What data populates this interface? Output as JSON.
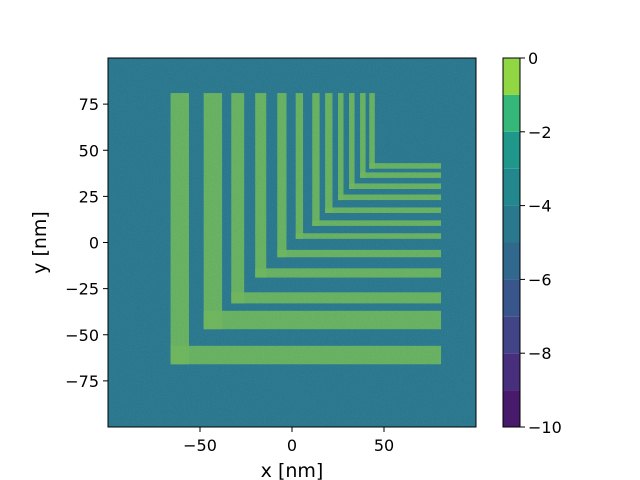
{
  "chart_data": {
    "type": "heatmap",
    "title": "",
    "xlabel": "x [nm]",
    "ylabel": "y [nm]",
    "xlim": [
      -100,
      100
    ],
    "ylim": [
      -100,
      100
    ],
    "x_ticks": [
      {
        "value": -50,
        "label": "−50"
      },
      {
        "value": 0,
        "label": "0"
      },
      {
        "value": 50,
        "label": "50"
      }
    ],
    "y_ticks": [
      {
        "value": 75,
        "label": "75"
      },
      {
        "value": 50,
        "label": "50"
      },
      {
        "value": 25,
        "label": "25"
      },
      {
        "value": 0,
        "label": "0"
      },
      {
        "value": -25,
        "label": "−25"
      },
      {
        "value": -50,
        "label": "−50"
      },
      {
        "value": -75,
        "label": "−75"
      }
    ],
    "colorbar": {
      "range": [
        -10,
        0
      ],
      "levels": [
        -10,
        -9,
        -8,
        -7,
        -6,
        -5,
        -4,
        -3,
        -2,
        -1,
        0
      ],
      "ticks": [
        {
          "value": 0,
          "label": "0"
        },
        {
          "value": -2,
          "label": "−2"
        },
        {
          "value": -4,
          "label": "−4"
        },
        {
          "value": -6,
          "label": "−6"
        },
        {
          "value": -8,
          "label": "−8"
        },
        {
          "value": -10,
          "label": "−10"
        }
      ],
      "colors": [
        "#481a6c",
        "#472f7d",
        "#414487",
        "#39568c",
        "#31688e",
        "#2a788e",
        "#23888e",
        "#1f988b",
        "#35b779",
        "#90d743",
        "#fde725"
      ]
    },
    "background_level": -4.5,
    "feature_level": -1,
    "nested_L_features": [
      {
        "x0": -66,
        "x1": -56,
        "y0": -66,
        "y1": -56,
        "x_end": 81,
        "y_end": 81
      },
      {
        "x0": -48,
        "x1": -38,
        "y0": -47,
        "y1": -37,
        "x_end": 81,
        "y_end": 81
      },
      {
        "x0": -33,
        "x1": -26,
        "y0": -33,
        "y1": -27,
        "x_end": 81,
        "y_end": 81
      },
      {
        "x0": -20,
        "x1": -14,
        "y0": -19,
        "y1": -14,
        "x_end": 81,
        "y_end": 81
      },
      {
        "x0": -8,
        "x1": -3,
        "y0": -8,
        "y1": -4,
        "x_end": 81,
        "y_end": 81
      },
      {
        "x0": 2,
        "x1": 6,
        "y0": 2,
        "y1": 5,
        "x_end": 81,
        "y_end": 81
      },
      {
        "x0": 11,
        "x1": 15,
        "y0": 9,
        "y1": 12,
        "x_end": 81,
        "y_end": 81
      },
      {
        "x0": 18,
        "x1": 22,
        "y0": 16,
        "y1": 19,
        "x_end": 81,
        "y_end": 81
      },
      {
        "x0": 25,
        "x1": 28,
        "y0": 23,
        "y1": 26,
        "x_end": 81,
        "y_end": 81
      },
      {
        "x0": 31,
        "x1": 34,
        "y0": 29,
        "y1": 32,
        "x_end": 81,
        "y_end": 81
      },
      {
        "x0": 37,
        "x1": 40,
        "y0": 35,
        "y1": 38,
        "x_end": 81,
        "y_end": 81
      },
      {
        "x0": 42,
        "x1": 45,
        "y0": 40,
        "y1": 43,
        "x_end": 81,
        "y_end": 81
      }
    ],
    "grid": false,
    "legend": "colorbar-right"
  }
}
